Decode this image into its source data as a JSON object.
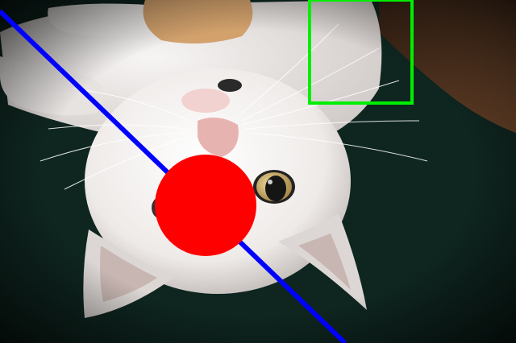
{
  "image": {
    "subject": "white-cat-lying-upside-down",
    "colors": {
      "fur": "#f1efee",
      "fur_shadow": "#c9c4c2",
      "ginger_patch": "#d2a16c",
      "nose": "#e7b3b0",
      "eye_iris": "#cdb27a",
      "pupil": "#151515",
      "carpet": "#0f2620",
      "wood": "#5b3a24"
    }
  },
  "annotations": {
    "line": {
      "color": "#0000ff"
    },
    "circle": {
      "color": "#ff0000"
    },
    "rectangle": {
      "color": "#00ee00"
    }
  }
}
